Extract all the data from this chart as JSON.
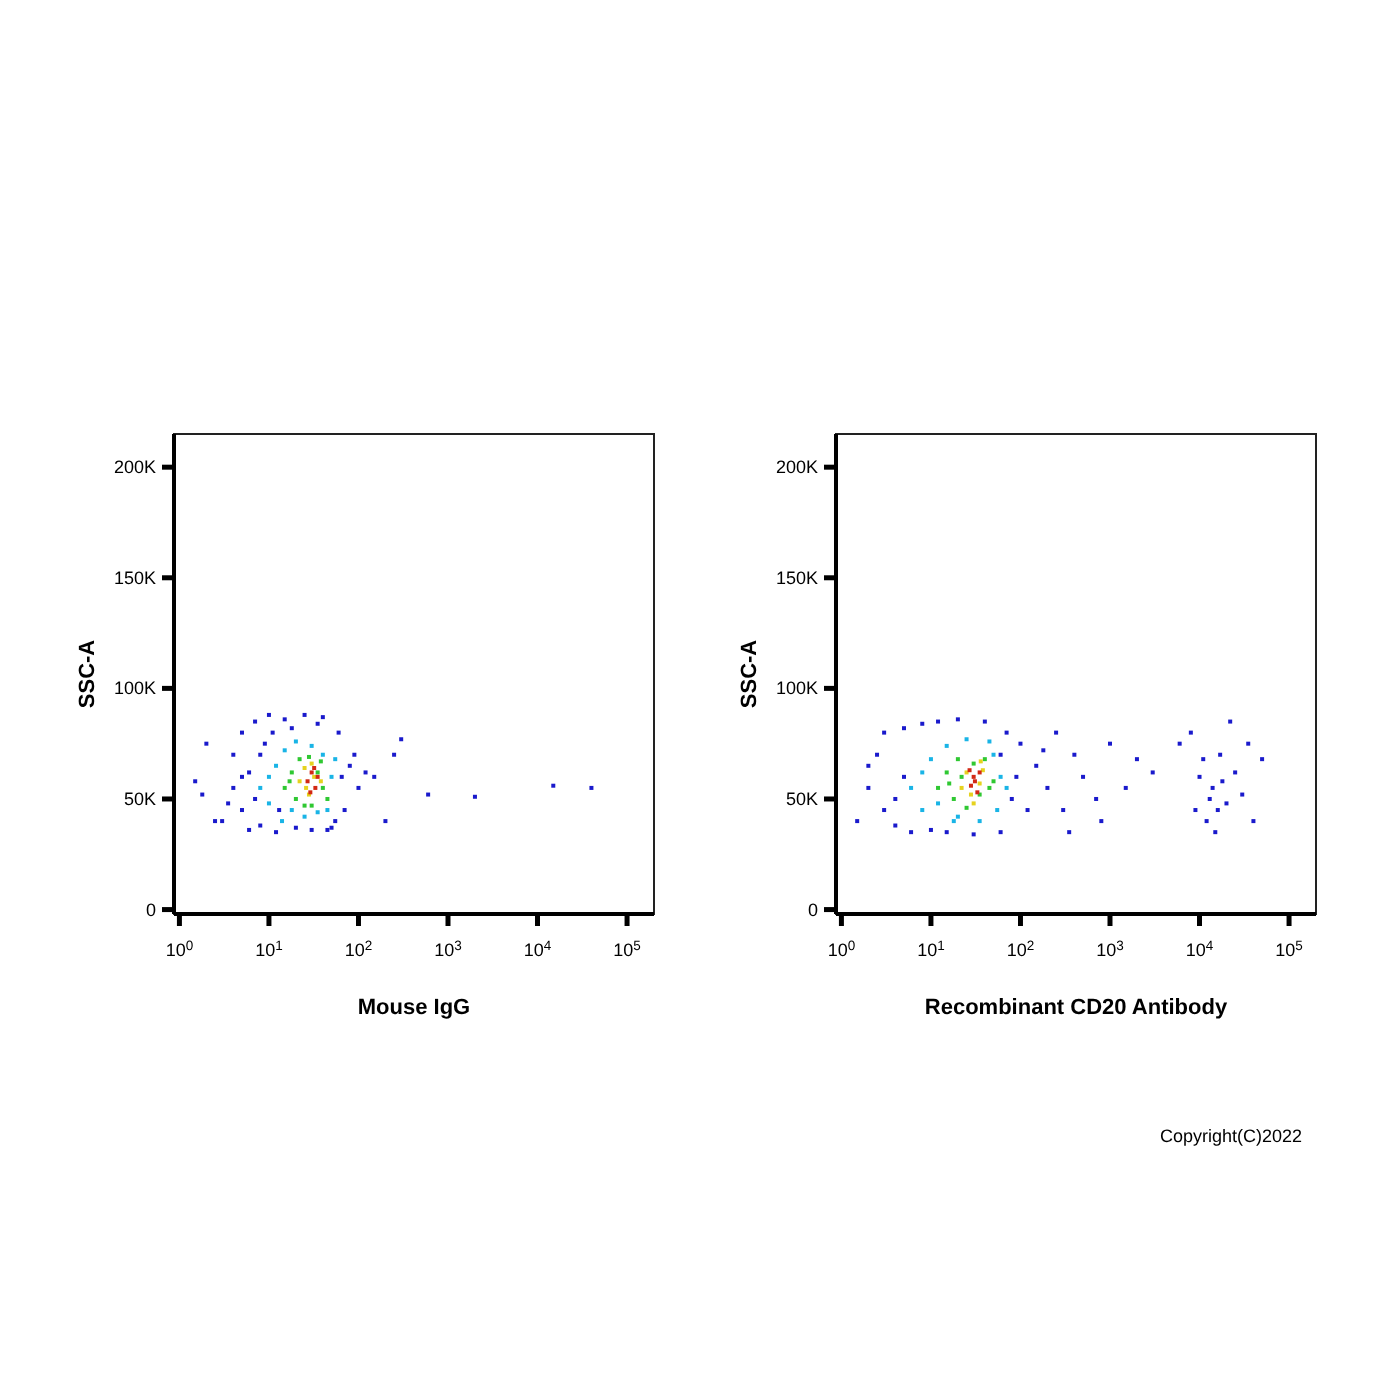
{
  "chart_data": [
    {
      "type": "scatter",
      "xlabel": "Mouse IgG",
      "ylabel": "SSC-A",
      "log": "x",
      "marker": "square",
      "grid": false,
      "xlim": [
        0.87,
        200000
      ],
      "ylim": [
        -2000,
        215000
      ],
      "xticks": [
        {
          "value": 1,
          "label": "10$^{0}$"
        },
        {
          "value": 10,
          "label": "10$^{1}$"
        },
        {
          "value": 100,
          "label": "10$^{2}$"
        },
        {
          "value": 1000,
          "label": "10$^{3}$"
        },
        {
          "value": 10000,
          "label": "10$^{4}$"
        },
        {
          "value": 100000,
          "label": "10$^{5}$"
        }
      ],
      "yticks": [
        0,
        {
          "value": 50000,
          "label": "50K"
        },
        {
          "value": 100000,
          "label": "100K"
        },
        {
          "value": 150000,
          "label": "150K"
        },
        {
          "value": 200000,
          "label": "200K"
        }
      ],
      "series": [
        {
          "color": "#1a1acc",
          "x": [
            3,
            4,
            5,
            5,
            6,
            7,
            8,
            9,
            4,
            3.5,
            6,
            10,
            12,
            15,
            20,
            25,
            30,
            40,
            50,
            60,
            70,
            80,
            90,
            100,
            2,
            1.5,
            1.8,
            2.5,
            7,
            11,
            18,
            35,
            55,
            65,
            120,
            150,
            45,
            8,
            5,
            13,
            200,
            300,
            250,
            600,
            2000,
            15000,
            40000
          ],
          "values": [
            40000,
            70000,
            80000,
            45000,
            36000,
            85000,
            38000,
            75000,
            55000,
            48000,
            62000,
            88000,
            35000,
            86000,
            37000,
            88000,
            36000,
            87000,
            37000,
            80000,
            45000,
            65000,
            70000,
            55000,
            75000,
            58000,
            52000,
            40000,
            50000,
            80000,
            82000,
            84000,
            40000,
            60000,
            62000,
            60000,
            36000,
            70000,
            60000,
            45000,
            40000,
            77000,
            70000,
            52000,
            51000,
            56000,
            55000
          ]
        },
        {
          "color": "#19b4e6",
          "x": [
            8,
            10,
            12,
            15,
            18,
            20,
            25,
            30,
            40,
            45,
            50,
            10,
            14,
            35,
            55
          ],
          "values": [
            55000,
            48000,
            65000,
            72000,
            45000,
            76000,
            42000,
            74000,
            70000,
            45000,
            60000,
            60000,
            40000,
            44000,
            68000
          ]
        },
        {
          "color": "#2fc832",
          "x": [
            15,
            18,
            20,
            22,
            25,
            28,
            30,
            35,
            40,
            45,
            17,
            38
          ],
          "values": [
            55000,
            62000,
            50000,
            68000,
            47000,
            69000,
            47000,
            62000,
            55000,
            50000,
            58000,
            67000
          ]
        },
        {
          "color": "#e6d21e",
          "x": [
            22,
            25,
            28,
            32,
            38,
            30,
            26
          ],
          "values": [
            58000,
            64000,
            52000,
            60000,
            58000,
            66000,
            55000
          ]
        },
        {
          "color": "#d22814",
          "x": [
            27,
            30,
            33,
            35,
            29,
            32
          ],
          "values": [
            58000,
            62000,
            55000,
            60000,
            53000,
            64000
          ]
        }
      ]
    },
    {
      "type": "scatter",
      "xlabel": "Recombinant CD20 Antibody",
      "ylabel": "SSC-A",
      "log": "x",
      "marker": "square",
      "grid": false,
      "xlim": [
        0.87,
        200000
      ],
      "ylim": [
        -2000,
        215000
      ],
      "xticks": [
        {
          "value": 1,
          "label": "10$^{0}$"
        },
        {
          "value": 10,
          "label": "10$^{1}$"
        },
        {
          "value": 100,
          "label": "10$^{2}$"
        },
        {
          "value": 1000,
          "label": "10$^{3}$"
        },
        {
          "value": 10000,
          "label": "10$^{4}$"
        },
        {
          "value": 100000,
          "label": "10$^{5}$"
        }
      ],
      "yticks": [
        0,
        {
          "value": 50000,
          "label": "50K"
        },
        {
          "value": 100000,
          "label": "100K"
        },
        {
          "value": 150000,
          "label": "150K"
        },
        {
          "value": 200000,
          "label": "200K"
        }
      ],
      "annotations": [
        "Copyright(C)2022"
      ],
      "series": [
        {
          "color": "#1a1acc",
          "x": [
            1.5,
            2,
            2.5,
            3,
            3,
            4,
            5,
            6,
            8,
            10,
            12,
            15,
            20,
            30,
            40,
            60,
            70,
            80,
            100,
            120,
            150,
            200,
            250,
            300,
            400,
            500,
            700,
            1000,
            1500,
            2000,
            800,
            350,
            3000,
            6000,
            8000,
            9000,
            10000,
            12000,
            14000,
            15000,
            17000,
            20000,
            22000,
            25000,
            30000,
            35000,
            40000,
            50000,
            13000,
            18000,
            16000,
            11000,
            5,
            4,
            2,
            60,
            90,
            180
          ],
          "values": [
            40000,
            55000,
            70000,
            80000,
            45000,
            38000,
            82000,
            35000,
            84000,
            36000,
            85000,
            35000,
            86000,
            34000,
            85000,
            35000,
            80000,
            50000,
            75000,
            45000,
            65000,
            55000,
            80000,
            45000,
            70000,
            60000,
            50000,
            75000,
            55000,
            68000,
            40000,
            35000,
            62000,
            75000,
            80000,
            45000,
            60000,
            40000,
            55000,
            35000,
            70000,
            48000,
            85000,
            62000,
            52000,
            75000,
            40000,
            68000,
            50000,
            58000,
            45000,
            68000,
            60000,
            50000,
            65000,
            70000,
            60000,
            72000
          ]
        },
        {
          "color": "#19b4e6",
          "x": [
            6,
            8,
            10,
            12,
            15,
            18,
            25,
            35,
            45,
            55,
            60,
            8,
            20,
            70,
            50
          ],
          "values": [
            55000,
            45000,
            68000,
            48000,
            74000,
            40000,
            77000,
            40000,
            76000,
            45000,
            60000,
            62000,
            42000,
            55000,
            70000
          ]
        },
        {
          "color": "#2fc832",
          "x": [
            12,
            15,
            18,
            20,
            25,
            30,
            35,
            40,
            45,
            22,
            50,
            16
          ],
          "values": [
            55000,
            62000,
            50000,
            68000,
            46000,
            66000,
            52000,
            68000,
            55000,
            60000,
            58000,
            57000
          ]
        },
        {
          "color": "#e6d21e",
          "x": [
            22,
            25,
            28,
            36,
            38,
            30,
            35
          ],
          "values": [
            55000,
            62000,
            52000,
            67000,
            63000,
            48000,
            57000
          ]
        },
        {
          "color": "#d22814",
          "x": [
            28,
            30,
            33,
            35,
            31,
            27
          ],
          "values": [
            56000,
            60000,
            53000,
            62000,
            58000,
            63000
          ]
        }
      ]
    }
  ]
}
